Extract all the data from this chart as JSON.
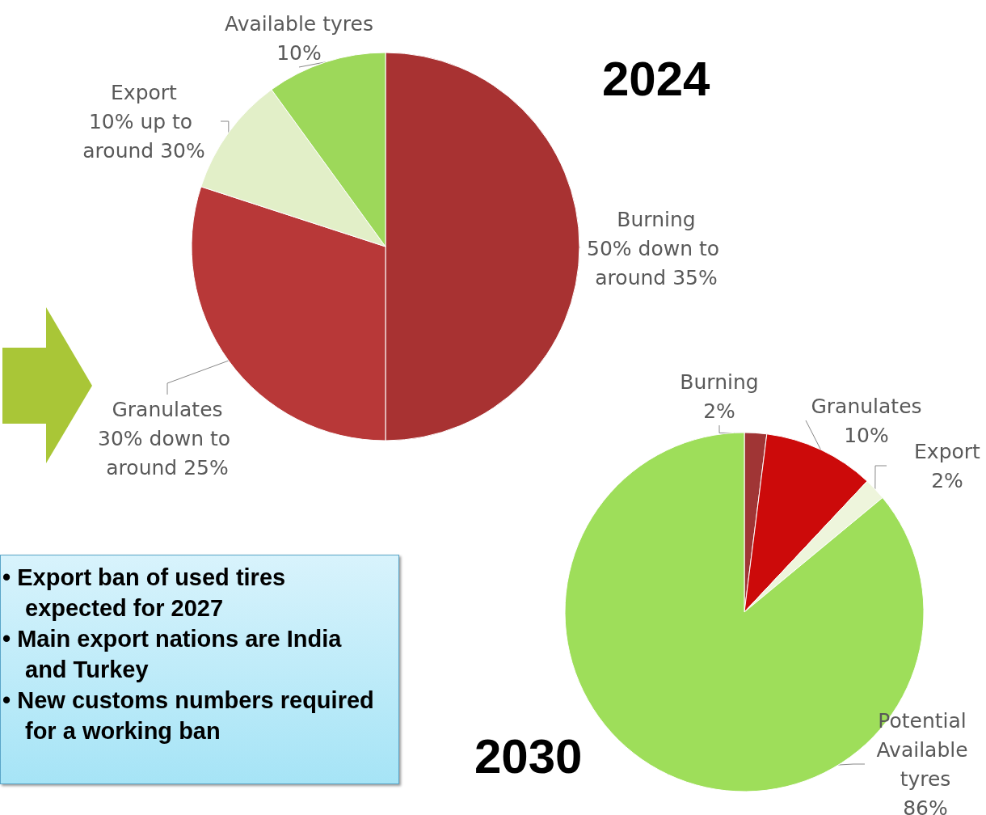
{
  "chart_data": [
    {
      "type": "pie",
      "title": "2024",
      "categories": [
        "Burning",
        "Granulates",
        "Export",
        "Available tyres"
      ],
      "values": [
        50,
        30,
        10,
        10
      ],
      "colors": [
        "#a83232",
        "#b83838",
        "#e2efc8",
        "#9dd85a"
      ],
      "value_labels": [
        "50% down to around 35%",
        "30% down to around 25%",
        "10% up to around 30%",
        "10%"
      ],
      "annotations": [
        "• Export ban of used tires expected for 2027",
        "• Main export nations are India and Turkey",
        "• New customs numbers required for a working ban"
      ]
    },
    {
      "type": "pie",
      "title": "2030",
      "categories": [
        "Burning",
        "Granulates",
        "Export",
        "Potential Available tyres"
      ],
      "values": [
        2,
        10,
        2,
        86
      ],
      "colors": [
        "#a03535",
        "#cc0a0a",
        "#eef5dc",
        "#9ede5a"
      ],
      "value_labels": [
        "2%",
        "10%",
        "2%",
        "86%"
      ]
    }
  ]
}
